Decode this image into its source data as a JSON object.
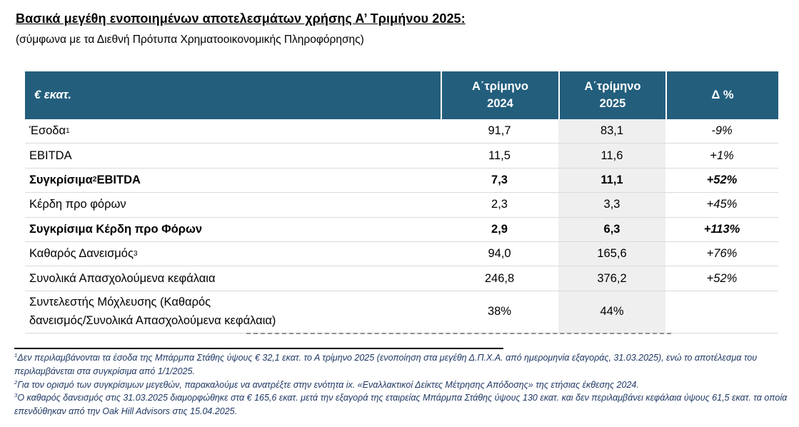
{
  "page": {
    "title": "Βασικά μεγέθη ενοποιημένων αποτελεσμάτων χρήσης Α’ Τριμήνου 2025:",
    "subtitle": "(σύμφωνα με τα Διεθνή Πρότυπα Χρηματοοικονομικής Πληροφόρησης)"
  },
  "colors": {
    "header_bg": "#235E7D",
    "header_text": "#FFFFFF",
    "shaded_column_bg": "#EFEFEF",
    "row_border": "#DADADA",
    "footnote_text": "#1F3864"
  },
  "table": {
    "columns": {
      "metric": "€ εκατ.",
      "q1_2024_line1": "Α΄τρίμηνο",
      "q1_2024_line2": "2024",
      "q1_2025_line1": "Α΄τρίμηνο",
      "q1_2025_line2": "2025",
      "delta": "Δ %"
    },
    "rows": [
      {
        "label": "Έσοδα",
        "sup": "1",
        "label_post": "",
        "label_line2": "",
        "q1_2024": "91,7",
        "q1_2025": "83,1",
        "delta": "-9%"
      },
      {
        "label": "EBITDA",
        "sup": "",
        "label_post": "",
        "label_line2": "",
        "q1_2024": "11,5",
        "q1_2025": "11,6",
        "delta": "+1%"
      },
      {
        "label": "Συγκρίσιμα",
        "sup": "2",
        "label_post": " EBITDA",
        "label_line2": "",
        "q1_2024": "7,3",
        "q1_2025": "11,1",
        "delta": "+52%"
      },
      {
        "label": "Κέρδη προ φόρων",
        "sup": "",
        "label_post": "",
        "label_line2": "",
        "q1_2024": "2,3",
        "q1_2025": "3,3",
        "delta": "+45%"
      },
      {
        "label": "Συγκρίσιμα Κέρδη προ Φόρων",
        "sup": "",
        "label_post": "",
        "label_line2": "",
        "q1_2024": "2,9",
        "q1_2025": "6,3",
        "delta": "+113%"
      },
      {
        "label": "Καθαρός Δανεισμός",
        "sup": "3",
        "label_post": "",
        "label_line2": "",
        "q1_2024": "94,0",
        "q1_2025": "165,6",
        "delta": "+76%"
      },
      {
        "label": "Συνολικά Απασχολούμενα κεφάλαια",
        "sup": "",
        "label_post": "",
        "label_line2": "",
        "q1_2024": "246,8",
        "q1_2025": "376,2",
        "delta": "+52%"
      },
      {
        "label": "Συντελεστής Μόχλευσης (Καθαρός",
        "sup": "",
        "label_post": "",
        "label_line2": "δανεισμός/Συνολικά Απασχολούμενα κεφάλαια)",
        "q1_2024": "38%",
        "q1_2025": "44%",
        "delta": ""
      }
    ]
  },
  "footnotes": [
    {
      "sup": "1",
      "text": "Δεν περιλαμβάνονται τα έσοδα της Μπάρμπα Στάθης ύψους € 32,1 εκατ. το Α τρίμηνο 2025 (ενοποίηση στα μεγέθη Δ.Π.Χ.Α. από ημερομηνία εξαγοράς, 31.03.2025), ενώ το αποτέλεσμα του περιλαμβάνεται στα συγκρίσιμα από 1/1/2025."
    },
    {
      "sup": "2",
      "text": "Για τον ορισμό των συγκρίσιμων μεγεθών, παρακαλούμε να ανατρέξτε στην ενότητα ix. «Εναλλακτικοί Δείκτες Μέτρησης Απόδοσης» της ετήσιας έκθεσης 2024."
    },
    {
      "sup": "3",
      "text": "Ο καθαρός δανεισμός στις 31.03.2025 διαμορφώθηκε στα € 165,6 εκατ. μετά την εξαγορά της εταιρείας Μπάρμπα Στάθης ύψους 130 εκατ. και δεν περιλαμβάνει κεφάλαια ύψους 61,5 εκατ. τα οποία επενδύθηκαν από την Oak Hill Advisors στις 15.04.2025."
    }
  ]
}
